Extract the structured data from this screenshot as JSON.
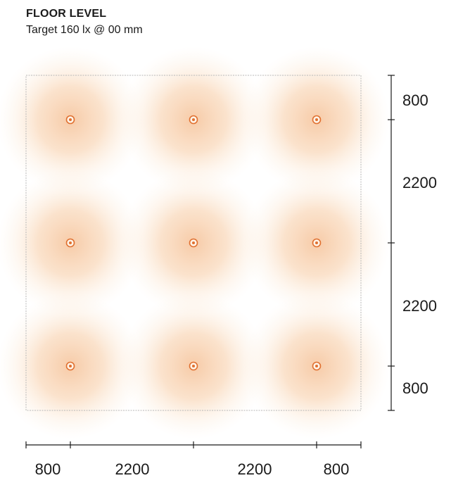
{
  "header": {
    "title": "FLOOR LEVEL",
    "subtitle": "Target 160 lx @ 00 mm"
  },
  "plan": {
    "border_color": "#b8b8b8",
    "glow_color": "#f0a060",
    "fixture_color": "#e07030",
    "fixture_columns": 3,
    "fixture_rows": 3
  },
  "dimensions": {
    "vertical": [
      "800",
      "2200",
      "2200",
      "800"
    ],
    "horizontal": [
      "800",
      "2200",
      "2200",
      "800"
    ]
  }
}
